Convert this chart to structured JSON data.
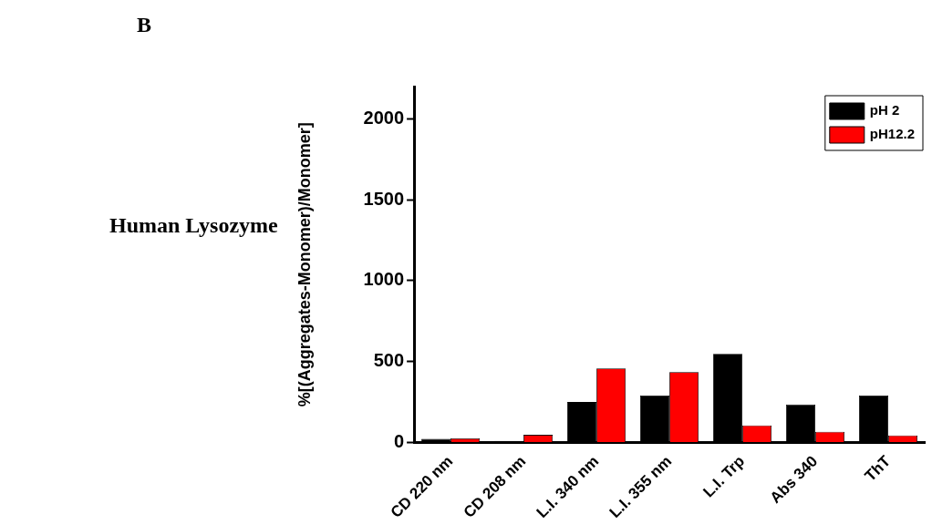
{
  "chart_data": {
    "type": "bar",
    "ylabel": "%[(Aggregates-Monomer)/Monomer]",
    "annotations": [
      "B",
      "Human Lysozyme"
    ],
    "categories": [
      "CD 220 nm",
      "CD 208 nm",
      "L.I. 340 nm",
      "L.I. 355 nm",
      "L.I. Trp",
      "Abs 340",
      "ThT"
    ],
    "series": [
      {
        "name": "pH 2",
        "color": "#000000",
        "values": [
          22,
          10,
          250,
          290,
          548,
          235,
          290
        ]
      },
      {
        "name": "pH12.2",
        "color": "#ff0000",
        "values": [
          25,
          47,
          458,
          435,
          105,
          66,
          44
        ]
      }
    ],
    "ylim": [
      0,
      2200
    ],
    "yticks": [
      0,
      500,
      1000,
      1500,
      2000
    ],
    "grid": false,
    "legend": "top right"
  }
}
